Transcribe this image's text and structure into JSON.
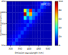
{
  "chart_data": {
    "type": "heatmap",
    "title": "HPCO",
    "x_label": "Emission wavelength (nm)",
    "y_label": "Excitation wavelength (nm)",
    "xlim": [
      280,
      520
    ],
    "xticks": [
      300,
      350,
      400,
      450,
      500
    ],
    "ylim": [
      250,
      450
    ],
    "yticks": [
      250,
      300,
      350,
      400,
      450
    ],
    "z": [
      [
        5,
        5,
        5,
        5,
        5,
        5,
        5,
        5,
        5,
        6,
        8,
        10,
        12,
        20,
        15,
        8
      ],
      [
        5,
        5,
        5,
        5,
        5,
        5,
        6,
        8,
        6,
        6,
        8,
        10,
        20,
        15,
        8,
        6
      ],
      [
        5,
        5,
        5,
        5,
        5,
        6,
        60,
        30,
        85,
        20,
        10,
        20,
        12,
        8,
        6,
        5
      ],
      [
        5,
        5,
        5,
        5,
        6,
        8,
        95,
        40,
        70,
        25,
        22,
        12,
        8,
        6,
        5,
        5
      ],
      [
        5,
        5,
        5,
        5,
        6,
        10,
        40,
        20,
        30,
        22,
        12,
        8,
        6,
        5,
        5,
        5
      ],
      [
        5,
        5,
        5,
        6,
        8,
        10,
        15,
        12,
        20,
        12,
        8,
        6,
        5,
        5,
        5,
        5
      ],
      [
        5,
        5,
        6,
        8,
        8,
        10,
        10,
        18,
        12,
        8,
        6,
        5,
        5,
        5,
        5,
        5
      ],
      [
        5,
        6,
        6,
        8,
        10,
        12,
        18,
        10,
        8,
        6,
        5,
        5,
        5,
        5,
        5,
        5
      ],
      [
        6,
        6,
        8,
        10,
        12,
        18,
        10,
        8,
        6,
        5,
        5,
        5,
        5,
        5,
        5,
        5
      ],
      [
        6,
        8,
        10,
        12,
        18,
        10,
        8,
        6,
        5,
        5,
        5,
        5,
        5,
        5,
        5,
        5
      ],
      [
        8,
        10,
        12,
        18,
        10,
        8,
        6,
        5,
        5,
        5,
        5,
        5,
        5,
        5,
        5,
        5
      ],
      [
        10,
        12,
        18,
        10,
        8,
        6,
        5,
        5,
        5,
        5,
        5,
        5,
        5,
        5,
        5,
        5
      ]
    ],
    "colorbar": {
      "range": [
        0,
        100
      ],
      "ticks": [
        0,
        20,
        40,
        60,
        80,
        100
      ]
    }
  }
}
